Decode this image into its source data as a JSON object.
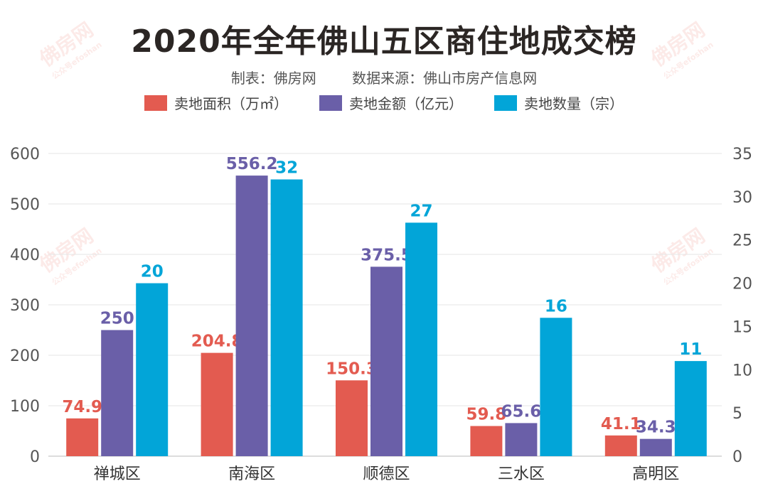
{
  "title": "2020年全年佛山五区商住地成交榜",
  "subtitle": {
    "maker": "制表：佛房网",
    "source": "数据来源：佛山市房产信息网"
  },
  "watermark": {
    "brand": "佛房网",
    "account": "公众号efoshan"
  },
  "chart_data": {
    "type": "bar",
    "title": "2020年全年佛山五区商住地成交榜",
    "categories": [
      "禅城区",
      "南海区",
      "顺德区",
      "三水区",
      "高明区"
    ],
    "series": [
      {
        "name": "卖地面积（万㎡）",
        "axis": "left",
        "color": "#e35b50",
        "values": [
          74.9,
          204.8,
          150.3,
          59.8,
          41.1
        ],
        "labels": [
          "74.9",
          "204.8",
          "150.3",
          "59.8",
          "41.1"
        ]
      },
      {
        "name": "卖地金额（亿元）",
        "axis": "left",
        "color": "#6a5fa8",
        "values": [
          250,
          556.2,
          375.5,
          65.6,
          34.3
        ],
        "labels": [
          "250",
          "556.2",
          "375.5",
          "65.6",
          "34.3"
        ]
      },
      {
        "name": "卖地数量（宗）",
        "axis": "right",
        "color": "#02a5d8",
        "values": [
          20,
          32,
          27,
          16,
          11
        ],
        "labels": [
          "20",
          "32",
          "27",
          "16",
          "11"
        ]
      }
    ],
    "left_axis": {
      "ylim": [
        0,
        600
      ],
      "ticks": [
        "0",
        "100",
        "200",
        "300",
        "400",
        "500",
        "600"
      ]
    },
    "right_axis": {
      "ylim": [
        0,
        35
      ],
      "ticks": [
        "0",
        "5",
        "10",
        "15",
        "20",
        "25",
        "30",
        "35"
      ]
    },
    "grid": true,
    "legend_position": "top"
  }
}
